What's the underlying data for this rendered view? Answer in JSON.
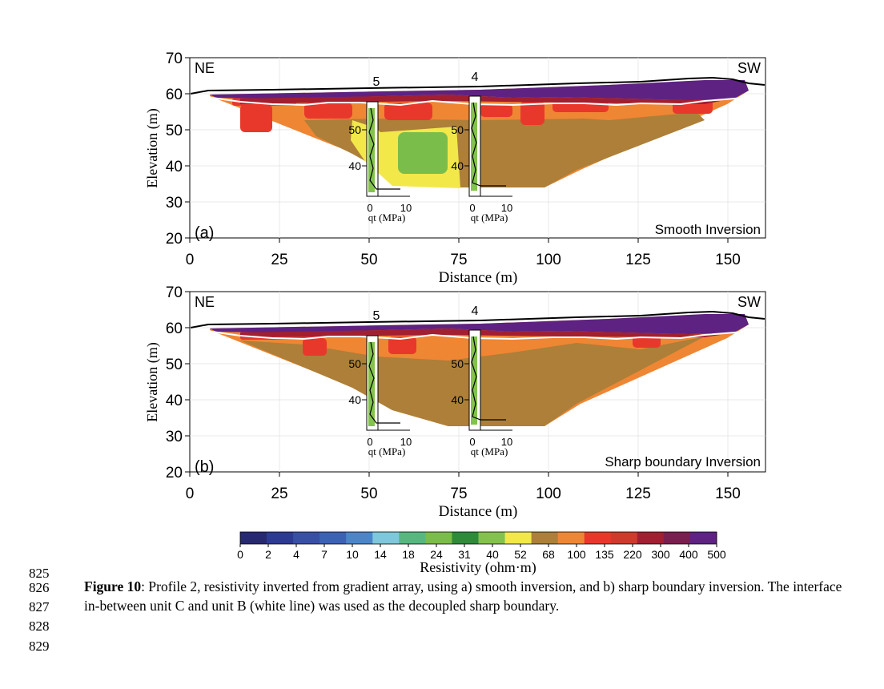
{
  "panels": [
    {
      "id": "a",
      "panel_label": "(a)",
      "inversion_label": "Smooth Inversion",
      "left_label": "NE",
      "right_label": "SW",
      "ylabel": "Elevation (m)",
      "xlabel": "Distance (m)",
      "cpt": [
        {
          "number": "5",
          "axis_ticks": [
            "50",
            "40"
          ],
          "qt_ticks": [
            "0",
            "10"
          ],
          "qt_label": "qt (MPa)"
        },
        {
          "number": "4",
          "axis_ticks": [
            "50",
            "40"
          ],
          "qt_ticks": [
            "0",
            "10"
          ],
          "qt_label": "qt (MPa)"
        }
      ]
    },
    {
      "id": "b",
      "panel_label": "(b)",
      "inversion_label": "Sharp boundary Inversion",
      "left_label": "NE",
      "right_label": "SW",
      "ylabel": "Elevation (m)",
      "xlabel": "Distance (m)",
      "cpt": [
        {
          "number": "5",
          "axis_ticks": [
            "50",
            "40"
          ],
          "qt_ticks": [
            "0",
            "10"
          ],
          "qt_label": "qt (MPa)"
        },
        {
          "number": "4",
          "axis_ticks": [
            "50",
            "40"
          ],
          "qt_ticks": [
            "0",
            "10"
          ],
          "qt_label": "qt (MPa)"
        }
      ]
    }
  ],
  "chart_data": [
    {
      "type": "heatmap",
      "panel": "(a) Smooth Inversion",
      "xlabel": "Distance (m)",
      "ylabel": "Elevation (m)",
      "xlim": [
        0,
        160
      ],
      "ylim": [
        20,
        70
      ],
      "x_ticks": [
        0,
        25,
        50,
        75,
        100,
        125,
        150
      ],
      "y_ticks": [
        20,
        30,
        40,
        50,
        60,
        70
      ],
      "grid": true,
      "surface_elevation": [
        [
          0,
          60.5
        ],
        [
          5,
          61
        ],
        [
          30,
          61.2
        ],
        [
          55,
          61.6
        ],
        [
          80,
          62
        ],
        [
          100,
          62.6
        ],
        [
          125,
          63.4
        ],
        [
          140,
          64.2
        ],
        [
          148,
          64.6
        ],
        [
          155,
          63.5
        ],
        [
          160,
          62.4
        ]
      ],
      "section_bottom": [
        [
          6,
          59.5
        ],
        [
          50,
          36
        ],
        [
          56,
          33
        ],
        [
          88,
          33
        ],
        [
          158,
          59.5
        ]
      ],
      "interface_white_line": [
        [
          8,
          58.5
        ],
        [
          30,
          56
        ],
        [
          60,
          56.5
        ],
        [
          90,
          57
        ],
        [
          115,
          56
        ],
        [
          140,
          57
        ],
        [
          156,
          58
        ]
      ],
      "cpt_locations": [
        {
          "id": "5",
          "x": 51
        },
        {
          "id": "4",
          "x": 79
        }
      ]
    },
    {
      "type": "heatmap",
      "panel": "(b) Sharp boundary Inversion",
      "xlabel": "Distance (m)",
      "ylabel": "Elevation (m)",
      "xlim": [
        0,
        160
      ],
      "ylim": [
        20,
        70
      ],
      "x_ticks": [
        0,
        25,
        50,
        75,
        100,
        125,
        150
      ],
      "y_ticks": [
        20,
        30,
        40,
        50,
        60,
        70
      ],
      "grid": true,
      "surface_elevation": [
        [
          0,
          60.5
        ],
        [
          5,
          61
        ],
        [
          30,
          61.2
        ],
        [
          55,
          61.6
        ],
        [
          80,
          62
        ],
        [
          100,
          62.6
        ],
        [
          125,
          63.4
        ],
        [
          140,
          64.2
        ],
        [
          148,
          64.6
        ],
        [
          155,
          63.5
        ],
        [
          160,
          62.4
        ]
      ],
      "section_bottom": [
        [
          6,
          59.5
        ],
        [
          50,
          36
        ],
        [
          56,
          33
        ],
        [
          88,
          33
        ],
        [
          158,
          59.5
        ]
      ],
      "interface_white_line": [
        [
          8,
          58.5
        ],
        [
          30,
          56
        ],
        [
          60,
          56.5
        ],
        [
          90,
          57
        ],
        [
          115,
          56
        ],
        [
          140,
          57
        ],
        [
          156,
          58
        ]
      ],
      "cpt_locations": [
        {
          "id": "5",
          "x": 51
        },
        {
          "id": "4",
          "x": 79
        }
      ]
    }
  ],
  "colorbar": {
    "label": "Resistivity (ohm·m)",
    "ticks": [
      "0",
      "2",
      "4",
      "7",
      "10",
      "14",
      "18",
      "24",
      "31",
      "40",
      "52",
      "68",
      "100",
      "135",
      "220",
      "300",
      "400",
      "500"
    ],
    "colors": [
      "#26296f",
      "#2c3a93",
      "#3750a5",
      "#3b62b5",
      "#4c86c8",
      "#7fc7dc",
      "#57b77f",
      "#7bbd4b",
      "#2f8a3a",
      "#83c24c",
      "#f2e84a",
      "#ad7f38",
      "#ef8633",
      "#e8382c",
      "#cf3a2c",
      "#a11f30",
      "#7a1e4f",
      "#5e2282"
    ]
  },
  "caption": {
    "line_numbers": [
      "825",
      "826",
      "827",
      "828",
      "829"
    ],
    "figure_label": "Figure 10",
    "text": ": Profile 2, resistivity inverted from gradient array, using a) smooth inversion, and b) sharp boundary inversion. The interface in-between unit C and unit B (white line) was used as the decoupled sharp boundary."
  }
}
